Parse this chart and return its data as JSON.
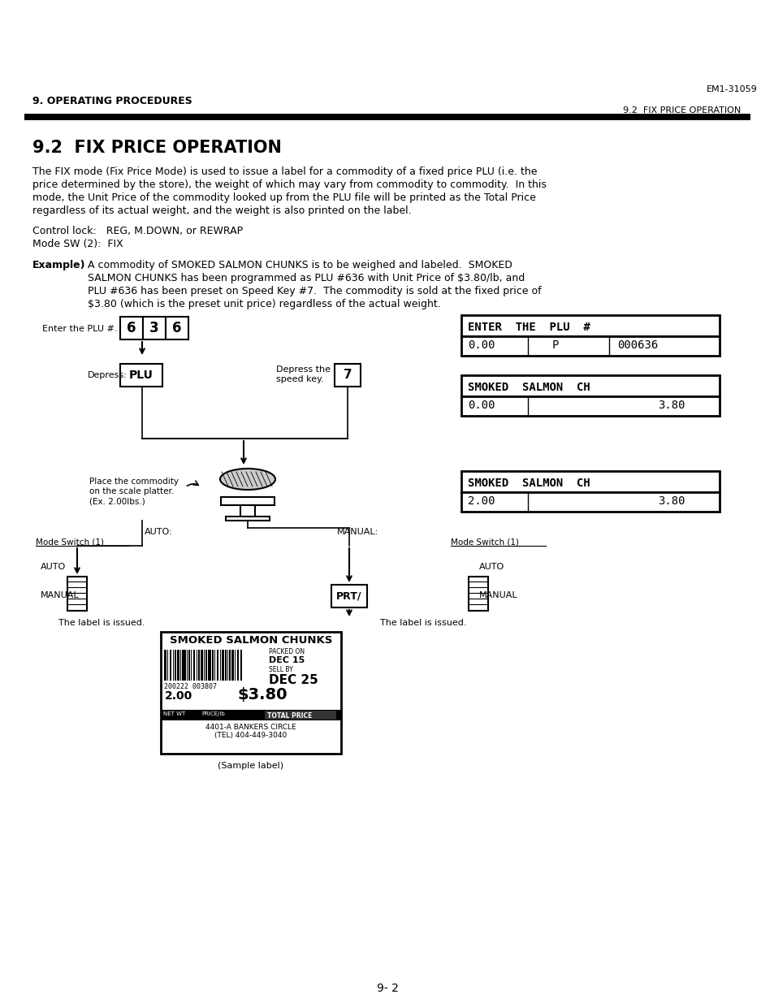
{
  "page_title": "EM1-31059",
  "header_left": "9. OPERATING PROCEDURES",
  "header_right": "9.2  FIX PRICE OPERATION",
  "section_title": "9.2  FIX PRICE OPERATION",
  "body_text": [
    "The FIX mode (Fix Price Mode) is used to issue a label for a commodity of a fixed price PLU (i.e. the",
    "price determined by the store), the weight of which may vary from commodity to commodity.  In this",
    "mode, the Unit Price of the commodity looked up from the PLU file will be printed as the Total Price",
    "regardless of its actual weight, and the weight is also printed on the label."
  ],
  "control_lock": "Control lock:   REG, M.DOWN, or REWRAP",
  "mode_sw": "Mode SW (2):  FIX",
  "example_label": "Example)",
  "example_text": [
    "A commodity of SMOKED SALMON CHUNKS is to be weighed and labeled.  SMOKED",
    "SALMON CHUNKS has been programmed as PLU #636 with Unit Price of $3.80/lb, and",
    "PLU #636 has been preset on Speed Key #7.  The commodity is sold at the fixed price of",
    "$3.80 (which is the preset unit price) regardless of the actual weight."
  ],
  "footer_text": "9- 2",
  "background_color": "#ffffff",
  "text_color": "#000000"
}
